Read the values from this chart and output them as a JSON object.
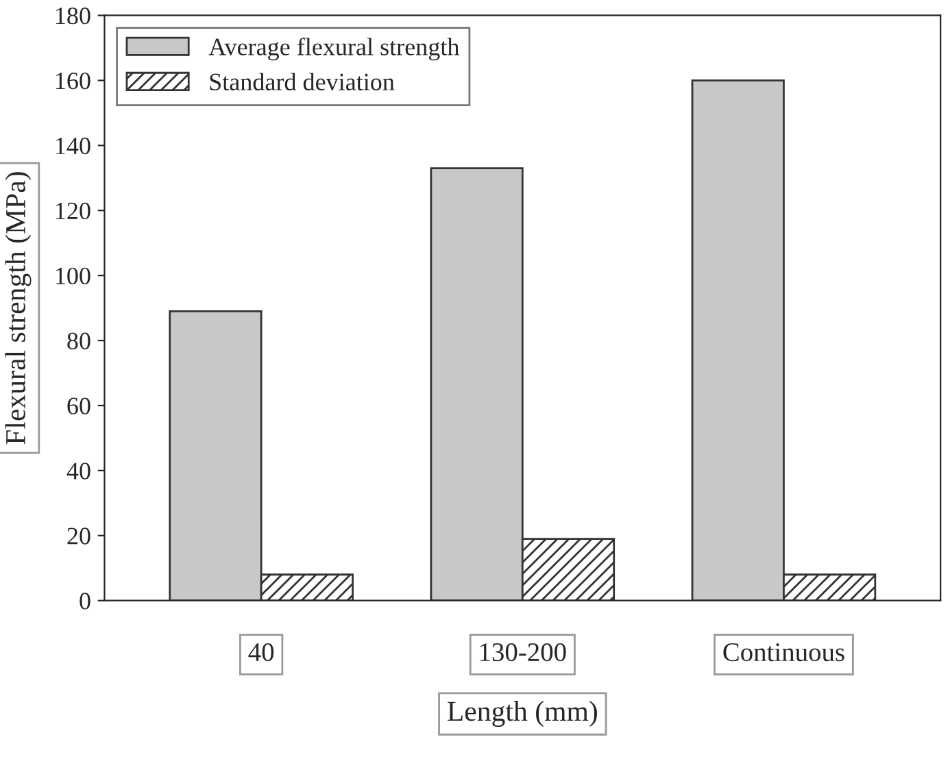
{
  "chart_data": {
    "type": "bar",
    "xlabel": "Length (mm)",
    "ylabel": "Flexural strength (MPa)",
    "categories": [
      "40",
      "130-200",
      "Continuous"
    ],
    "series": [
      {
        "name": "Average flexural strength",
        "color": "#c8c8c8",
        "values": [
          89,
          133,
          160
        ]
      },
      {
        "name": "Standard deviation",
        "color": "#333333",
        "values": [
          8,
          19,
          8
        ]
      }
    ],
    "ylim": [
      0,
      180
    ],
    "yticks": [
      0,
      20,
      40,
      60,
      80,
      100,
      120,
      140,
      160,
      180
    ],
    "legend": "top left",
    "grid": false
  }
}
